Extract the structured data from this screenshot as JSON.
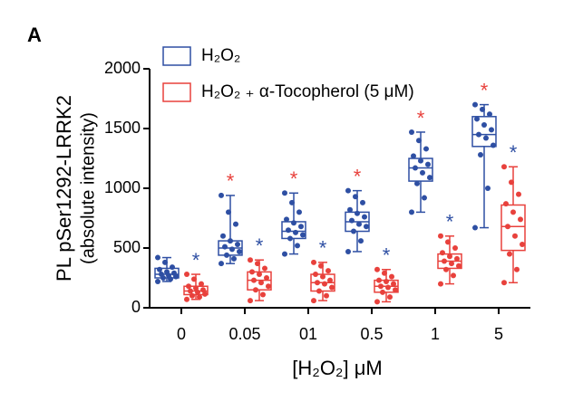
{
  "chart_data": {
    "type": "box",
    "panel_label": "A",
    "y_label_lines": [
      "PL pSer1292-LRRK2",
      "(absolute intensity)"
    ],
    "x_label": "[H₂O₂] μM",
    "categories": [
      "0",
      "0.05",
      "01",
      "0.5",
      "1",
      "5"
    ],
    "ylim": [
      0,
      2000
    ],
    "yticks": [
      0,
      500,
      1000,
      1500,
      2000
    ],
    "series": [
      {
        "name": "H₂O₂",
        "color": "#2e4fa3",
        "annotation": "*",
        "annotation_color": "#e8413c",
        "annotated": [
          false,
          true,
          true,
          true,
          true,
          true
        ],
        "values": [
          {
            "min": 220,
            "q1": 250,
            "median": 280,
            "q3": 330,
            "max": 420
          },
          {
            "min": 370,
            "q1": 440,
            "median": 500,
            "q3": 560,
            "max": 940
          },
          {
            "min": 450,
            "q1": 580,
            "median": 640,
            "q3": 720,
            "max": 960
          },
          {
            "min": 470,
            "q1": 640,
            "median": 720,
            "q3": 800,
            "max": 980
          },
          {
            "min": 800,
            "q1": 1060,
            "median": 1170,
            "q3": 1250,
            "max": 1470
          },
          {
            "min": 670,
            "q1": 1350,
            "median": 1450,
            "q3": 1600,
            "max": 1700
          }
        ],
        "points": [
          [
            220,
            240,
            250,
            260,
            270,
            280,
            290,
            300,
            320,
            340,
            380,
            420
          ],
          [
            370,
            410,
            440,
            470,
            490,
            510,
            530,
            560,
            600,
            700,
            800,
            940
          ],
          [
            450,
            520,
            580,
            610,
            630,
            650,
            680,
            710,
            740,
            800,
            880,
            960
          ],
          [
            470,
            560,
            640,
            680,
            700,
            730,
            760,
            790,
            820,
            880,
            930,
            980
          ],
          [
            800,
            920,
            1040,
            1090,
            1130,
            1170,
            1200,
            1230,
            1270,
            1330,
            1400,
            1470
          ],
          [
            670,
            1000,
            1280,
            1360,
            1420,
            1450,
            1490,
            1530,
            1580,
            1620,
            1660,
            1700
          ]
        ]
      },
      {
        "name": "H₂O₂ ₊ α-Tocopherol (5 μM)",
        "color": "#e8413c",
        "annotation": "*",
        "annotation_color": "#2e4fa3",
        "annotated": [
          true,
          true,
          true,
          true,
          true,
          true
        ],
        "values": [
          {
            "min": 70,
            "q1": 110,
            "median": 140,
            "q3": 180,
            "max": 280
          },
          {
            "min": 60,
            "q1": 150,
            "median": 230,
            "q3": 300,
            "max": 400
          },
          {
            "min": 60,
            "q1": 140,
            "median": 210,
            "q3": 280,
            "max": 380
          },
          {
            "min": 50,
            "q1": 130,
            "median": 180,
            "q3": 230,
            "max": 320
          },
          {
            "min": 200,
            "q1": 330,
            "median": 390,
            "q3": 450,
            "max": 600
          },
          {
            "min": 210,
            "q1": 480,
            "median": 680,
            "q3": 860,
            "max": 1180
          }
        ],
        "points": [
          [
            70,
            90,
            100,
            115,
            130,
            140,
            150,
            165,
            180,
            200,
            240,
            280
          ],
          [
            60,
            110,
            150,
            180,
            210,
            230,
            250,
            280,
            300,
            330,
            370,
            400
          ],
          [
            60,
            100,
            140,
            170,
            200,
            210,
            230,
            260,
            280,
            310,
            350,
            380
          ],
          [
            50,
            90,
            130,
            150,
            170,
            180,
            200,
            220,
            230,
            260,
            290,
            320
          ],
          [
            200,
            270,
            320,
            350,
            370,
            390,
            410,
            430,
            460,
            500,
            550,
            600
          ],
          [
            210,
            320,
            450,
            530,
            600,
            680,
            740,
            800,
            870,
            950,
            1050,
            1180
          ]
        ]
      }
    ]
  }
}
